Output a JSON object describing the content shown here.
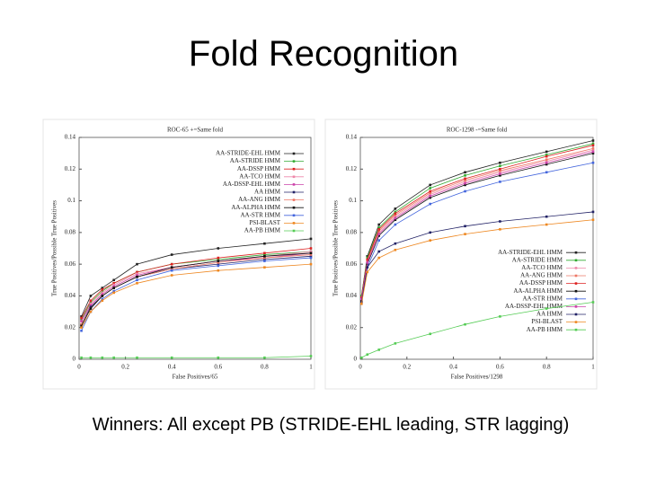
{
  "slide": {
    "title": "Fold Recognition",
    "caption": "Winners: All except PB (STRIDE-EHL leading, STR lagging)"
  },
  "chart_data": [
    {
      "type": "line",
      "title": "ROC-65  +=Same fold",
      "xlabel": "False Positives/65",
      "ylabel": "True Positives/Possible True Positives",
      "xlim": [
        0,
        1
      ],
      "ylim": [
        0,
        0.14
      ],
      "xticks": [
        0,
        0.2,
        0.4,
        0.6,
        0.8,
        1
      ],
      "yticks": [
        0,
        0.02,
        0.04,
        0.06,
        0.08,
        0.1,
        0.12,
        0.14
      ],
      "legend": "upper right",
      "x": [
        0.01,
        0.05,
        0.1,
        0.15,
        0.25,
        0.4,
        0.6,
        0.8,
        1
      ],
      "series": [
        {
          "name": "AA-STRIDE-EHL HMM",
          "color": "#222222",
          "values": [
            0.027,
            0.04,
            0.045,
            0.05,
            0.06,
            0.066,
            0.07,
            0.073,
            0.076
          ]
        },
        {
          "name": "AA-STRIDE HMM",
          "color": "#33aa33",
          "values": [
            0.025,
            0.036,
            0.043,
            0.048,
            0.055,
            0.06,
            0.063,
            0.066,
            0.068
          ]
        },
        {
          "name": "AA-DSSP HMM",
          "color": "#dd2222",
          "values": [
            0.026,
            0.037,
            0.044,
            0.048,
            0.055,
            0.06,
            0.064,
            0.067,
            0.07
          ]
        },
        {
          "name": "AA-TCO HMM",
          "color": "#ee88aa",
          "values": [
            0.024,
            0.035,
            0.042,
            0.047,
            0.054,
            0.058,
            0.062,
            0.065,
            0.068
          ]
        },
        {
          "name": "AA-DSSP-EHL HMM",
          "color": "#cc44aa",
          "values": [
            0.024,
            0.034,
            0.041,
            0.046,
            0.053,
            0.058,
            0.062,
            0.064,
            0.067
          ]
        },
        {
          "name": "AA HMM",
          "color": "#222266",
          "values": [
            0.022,
            0.033,
            0.04,
            0.045,
            0.052,
            0.057,
            0.06,
            0.063,
            0.065
          ]
        },
        {
          "name": "AA-ANG HMM",
          "color": "#ee7766",
          "values": [
            0.022,
            0.032,
            0.04,
            0.045,
            0.052,
            0.057,
            0.061,
            0.064,
            0.066
          ]
        },
        {
          "name": "AA-ALPHA HMM",
          "color": "#111111",
          "values": [
            0.021,
            0.032,
            0.04,
            0.045,
            0.052,
            0.058,
            0.062,
            0.065,
            0.067
          ]
        },
        {
          "name": "AA-STR HMM",
          "color": "#4466dd",
          "values": [
            0.018,
            0.03,
            0.038,
            0.043,
            0.05,
            0.056,
            0.059,
            0.062,
            0.064
          ]
        },
        {
          "name": "PSI-BLAST",
          "color": "#ee8822",
          "values": [
            0.02,
            0.03,
            0.037,
            0.042,
            0.048,
            0.053,
            0.056,
            0.058,
            0.06
          ]
        },
        {
          "name": "AA-PB HMM",
          "color": "#55cc55",
          "values": [
            0.001,
            0.001,
            0.001,
            0.001,
            0.001,
            0.001,
            0.001,
            0.001,
            0.002
          ]
        }
      ]
    },
    {
      "type": "line",
      "title": "ROC-1298  -=Same fold",
      "xlabel": "False Positives/1298",
      "ylabel": "True Positives/Possible True Positives",
      "xlim": [
        0,
        1
      ],
      "ylim": [
        0,
        0.14
      ],
      "xticks": [
        0,
        0.2,
        0.4,
        0.6,
        0.8,
        1
      ],
      "yticks": [
        0,
        0.02,
        0.04,
        0.06,
        0.08,
        0.1,
        0.12,
        0.14
      ],
      "legend": "center right",
      "x": [
        0.005,
        0.03,
        0.08,
        0.15,
        0.3,
        0.45,
        0.6,
        0.8,
        1
      ],
      "series": [
        {
          "name": "AA-STRIDE-EHL HMM",
          "color": "#222222",
          "values": [
            0.04,
            0.065,
            0.085,
            0.095,
            0.11,
            0.118,
            0.124,
            0.131,
            0.138
          ]
        },
        {
          "name": "AA-STRIDE HMM",
          "color": "#33aa33",
          "values": [
            0.04,
            0.064,
            0.083,
            0.093,
            0.108,
            0.116,
            0.122,
            0.129,
            0.136
          ]
        },
        {
          "name": "AA-TCO HMM",
          "color": "#ee88aa",
          "values": [
            0.038,
            0.062,
            0.08,
            0.09,
            0.104,
            0.112,
            0.118,
            0.125,
            0.132
          ]
        },
        {
          "name": "AA-ANG HMM",
          "color": "#ee7766",
          "values": [
            0.038,
            0.062,
            0.081,
            0.091,
            0.105,
            0.113,
            0.119,
            0.126,
            0.133
          ]
        },
        {
          "name": "AA-DSSP HMM",
          "color": "#dd2222",
          "values": [
            0.039,
            0.063,
            0.082,
            0.092,
            0.106,
            0.114,
            0.12,
            0.128,
            0.135
          ]
        },
        {
          "name": "AA-ALPHA HMM",
          "color": "#111111",
          "values": [
            0.037,
            0.06,
            0.078,
            0.088,
            0.102,
            0.11,
            0.116,
            0.123,
            0.13
          ]
        },
        {
          "name": "AA-STR HMM",
          "color": "#4466dd",
          "values": [
            0.035,
            0.058,
            0.075,
            0.085,
            0.098,
            0.106,
            0.112,
            0.118,
            0.124
          ]
        },
        {
          "name": "AA-DSSP-EHL HMM",
          "color": "#cc44aa",
          "values": [
            0.038,
            0.061,
            0.079,
            0.089,
            0.103,
            0.111,
            0.117,
            0.124,
            0.131
          ]
        },
        {
          "name": "AA HMM",
          "color": "#222266",
          "values": [
            0.036,
            0.058,
            0.068,
            0.073,
            0.08,
            0.084,
            0.087,
            0.09,
            0.093
          ]
        },
        {
          "name": "PSI-BLAST",
          "color": "#ee8822",
          "values": [
            0.035,
            0.055,
            0.064,
            0.069,
            0.075,
            0.079,
            0.082,
            0.085,
            0.088
          ]
        },
        {
          "name": "AA-PB HMM",
          "color": "#55cc55",
          "values": [
            0.001,
            0.003,
            0.006,
            0.01,
            0.016,
            0.022,
            0.027,
            0.032,
            0.036
          ]
        }
      ]
    }
  ]
}
